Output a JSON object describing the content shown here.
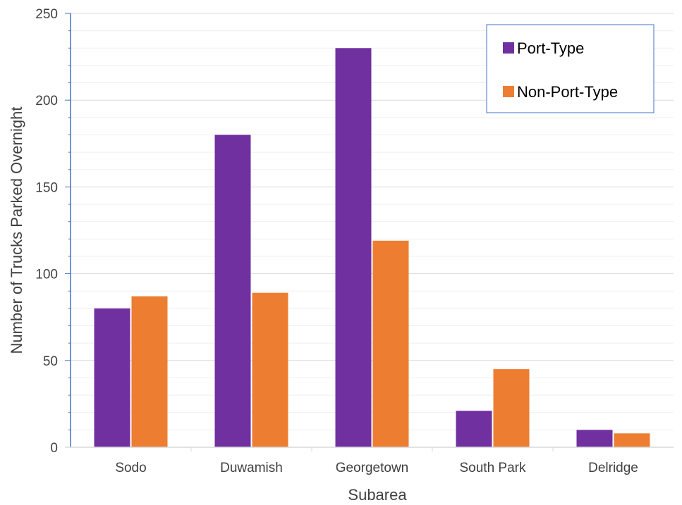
{
  "chart_data": {
    "type": "bar",
    "categories": [
      "Sodo",
      "Duwamish",
      "Georgetown",
      "South Park",
      "Delridge"
    ],
    "series": [
      {
        "name": "Port-Type",
        "values": [
          80,
          180,
          230,
          21,
          10
        ],
        "color": "#7030A0"
      },
      {
        "name": "Non-Port-Type",
        "values": [
          87,
          89,
          119,
          45,
          8
        ],
        "color": "#ED7D31"
      }
    ],
    "title": "",
    "xlabel": "Subarea",
    "ylabel": "Number of Trucks Parked Overnight",
    "ylim": [
      0,
      250
    ],
    "yticks": [
      "0",
      "50",
      "100",
      "150",
      "200",
      "250"
    ],
    "grid": true,
    "legend_position": "top-right",
    "colors": {
      "axis": "#4472C4",
      "grid": "#D9D9D9",
      "legend_border": "#4472C4"
    }
  }
}
